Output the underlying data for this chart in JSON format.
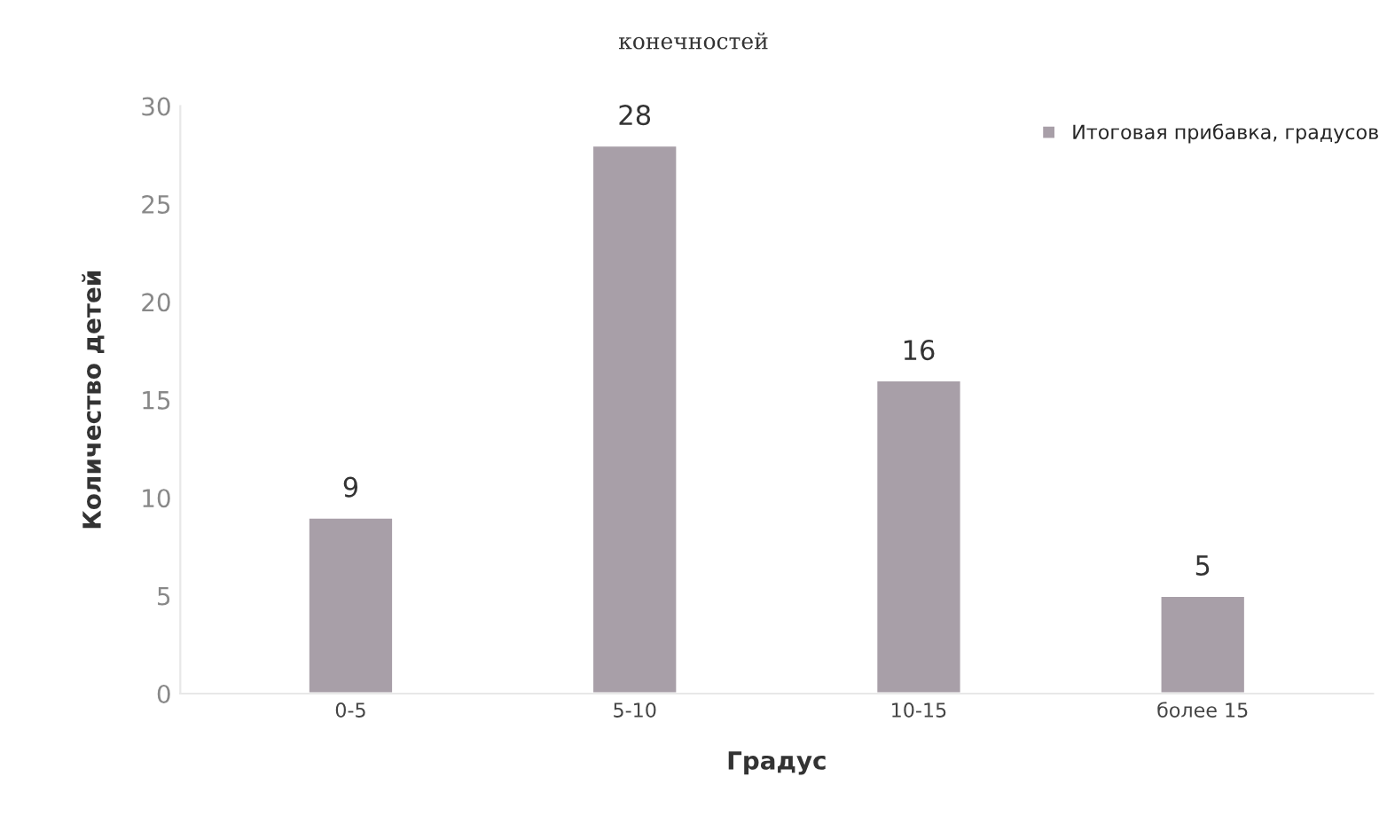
{
  "chart_data": {
    "type": "bar",
    "title": "конечностей",
    "xlabel": "Градус",
    "ylabel": "Количество детей",
    "categories": [
      "0-5",
      "5-10",
      "10-15",
      "более 15"
    ],
    "series": [
      {
        "name": "Итоговая прибавка, градусов",
        "color": "#a89fa8",
        "values": [
          9,
          28,
          16,
          5
        ]
      }
    ],
    "ylim": [
      0,
      30
    ],
    "yticks": [
      0,
      5,
      10,
      15,
      20,
      25,
      30
    ],
    "data_labels": true,
    "grid": false,
    "legend": "top right"
  }
}
